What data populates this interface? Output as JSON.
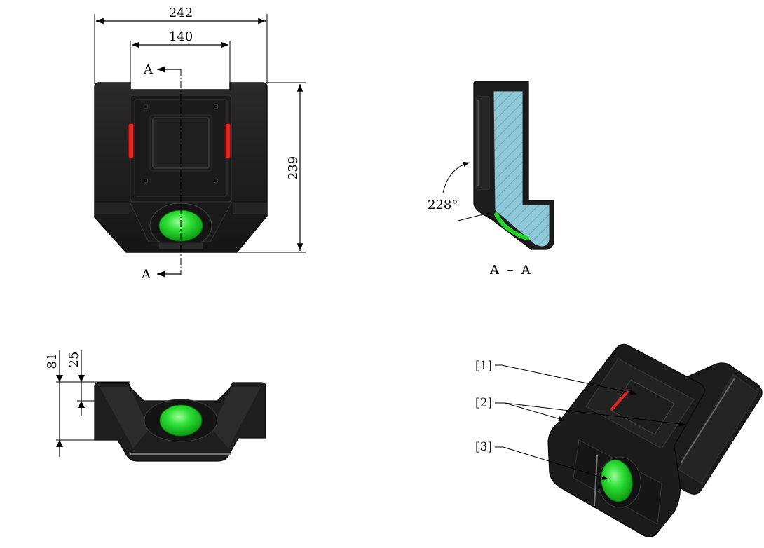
{
  "front_view": {
    "dim_width_overall": "242",
    "dim_width_inner": "140",
    "dim_height": "239",
    "section_mark_top": "A",
    "section_mark_bottom": "A"
  },
  "section_view": {
    "angle_label": "228°",
    "title": "A  –  A"
  },
  "bottom_view": {
    "dim_81": "81",
    "dim_25": "25"
  },
  "iso_view": {
    "callouts": [
      "[1]",
      "[2]",
      "[3]"
    ]
  },
  "colors": {
    "body_dark": "#1e1e1e",
    "accent_green": "#22d32a",
    "accent_red": "#e0261f",
    "hatch_fill": "#88c6d4"
  }
}
